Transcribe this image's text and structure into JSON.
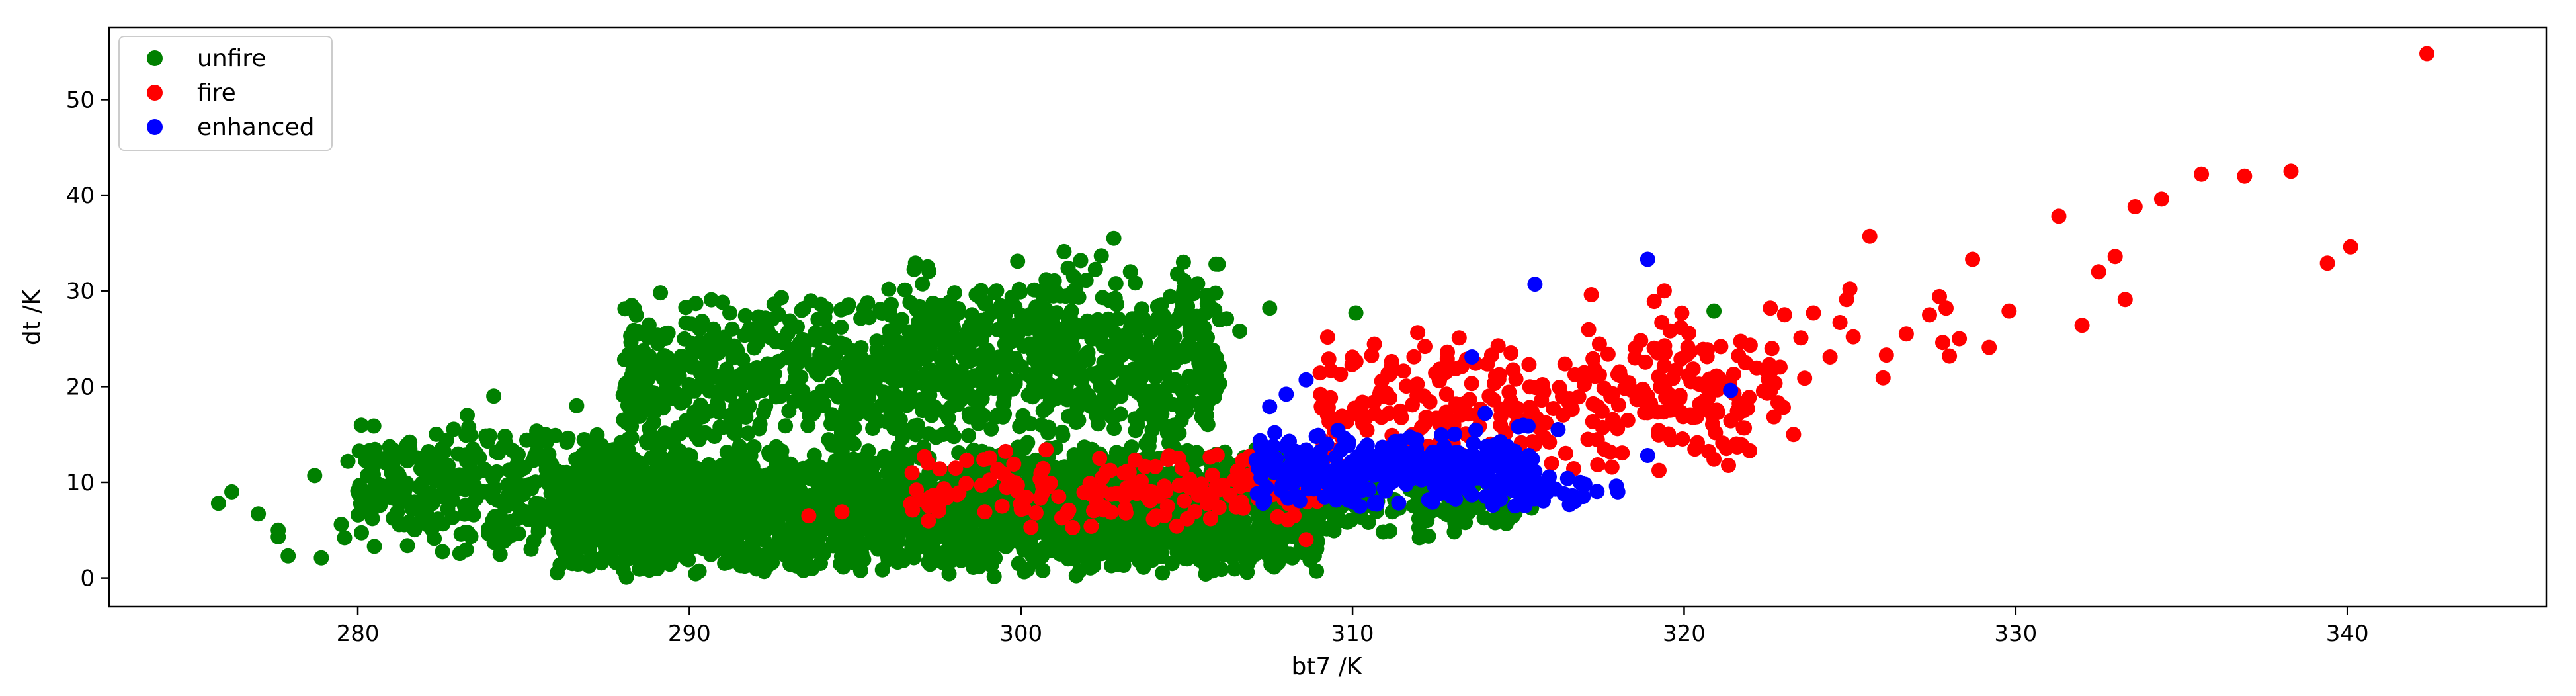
{
  "chart_data": {
    "type": "scatter",
    "title": "",
    "xlabel": "bt7 /K",
    "ylabel": "dt /K",
    "xlim": [
      272.5,
      346.0
    ],
    "ylim": [
      -3,
      57.5
    ],
    "x_ticks": [
      280,
      290,
      300,
      310,
      320,
      330,
      340
    ],
    "y_ticks": [
      0,
      10,
      20,
      30,
      40,
      50
    ],
    "grid": false,
    "legend_position": "top-left",
    "series": [
      {
        "name": "unfire",
        "color": "#008000",
        "clusters": [
          {
            "x_range": [
              286,
              309
            ],
            "y_range": [
              0,
              14
            ],
            "count": 2600
          },
          {
            "x_range": [
              288,
              306
            ],
            "y_range": [
              12,
              30
            ],
            "count": 900
          },
          {
            "x_range": [
              280,
              290
            ],
            "y_range": [
              2,
              17
            ],
            "count": 420
          },
          {
            "x_range": [
              296,
              306
            ],
            "y_range": [
              18,
              34
            ],
            "count": 260
          },
          {
            "x_range": [
              305,
              315
            ],
            "y_range": [
              4,
              12
            ],
            "count": 220
          }
        ],
        "points": [
          [
            275.8,
            7.8
          ],
          [
            276.2,
            9.0
          ],
          [
            277.0,
            6.7
          ],
          [
            277.6,
            5.0
          ],
          [
            277.6,
            4.3
          ],
          [
            277.9,
            2.3
          ],
          [
            278.7,
            10.7
          ],
          [
            278.9,
            2.1
          ],
          [
            279.5,
            5.6
          ],
          [
            279.6,
            4.2
          ],
          [
            279.7,
            12.2
          ],
          [
            280.0,
            9.1
          ],
          [
            280.5,
            3.3
          ],
          [
            281.0,
            9.3
          ],
          [
            283.3,
            17.0
          ],
          [
            284.1,
            19.0
          ],
          [
            286.6,
            18.0
          ],
          [
            288.1,
            0.1
          ],
          [
            292.8,
            24.6
          ],
          [
            294.2,
            26.0
          ],
          [
            296.5,
            30.1
          ],
          [
            298.0,
            29.8
          ],
          [
            299.9,
            33.1
          ],
          [
            301.3,
            34.1
          ],
          [
            302.8,
            35.5
          ],
          [
            303.3,
            32.0
          ],
          [
            304.9,
            33.0
          ],
          [
            306.2,
            27.1
          ],
          [
            306.6,
            25.8
          ],
          [
            307.5,
            28.2
          ],
          [
            310.1,
            27.7
          ],
          [
            310.5,
            10.4
          ],
          [
            311.2,
            6.9
          ],
          [
            312.0,
            6.2
          ],
          [
            313.4,
            5.8
          ],
          [
            314.9,
            6.8
          ],
          [
            315.4,
            7.3
          ],
          [
            320.9,
            27.9
          ]
        ]
      },
      {
        "name": "fire",
        "color": "#ff0000",
        "clusters": [
          {
            "x_range": [
              296.5,
              309
            ],
            "y_range": [
              5,
              14
            ],
            "count": 170
          },
          {
            "x_range": [
              309,
              322
            ],
            "y_range": [
              10,
              26
            ],
            "count": 280
          },
          {
            "x_range": [
              317,
              324
            ],
            "y_range": [
              13,
              30
            ],
            "count": 60
          }
        ],
        "points": [
          [
            293.6,
            6.5
          ],
          [
            294.6,
            6.9
          ],
          [
            300.3,
            5.3
          ],
          [
            302.5,
            7.1
          ],
          [
            308.6,
            4.0
          ],
          [
            317.2,
            29.6
          ],
          [
            319.1,
            28.9
          ],
          [
            319.4,
            30.0
          ],
          [
            319.9,
            26.2
          ],
          [
            320.9,
            12.4
          ],
          [
            321.6,
            13.7
          ],
          [
            322.6,
            28.2
          ],
          [
            323.3,
            15.0
          ],
          [
            323.9,
            27.7
          ],
          [
            324.4,
            23.1
          ],
          [
            324.7,
            26.7
          ],
          [
            324.9,
            29.1
          ],
          [
            325.0,
            30.2
          ],
          [
            325.1,
            25.2
          ],
          [
            325.6,
            35.7
          ],
          [
            326.0,
            20.9
          ],
          [
            326.1,
            23.3
          ],
          [
            326.7,
            25.5
          ],
          [
            327.4,
            27.5
          ],
          [
            327.7,
            29.4
          ],
          [
            327.9,
            28.2
          ],
          [
            327.8,
            24.6
          ],
          [
            328.0,
            23.2
          ],
          [
            328.3,
            25.0
          ],
          [
            328.7,
            33.3
          ],
          [
            329.2,
            24.1
          ],
          [
            329.8,
            27.9
          ],
          [
            331.3,
            37.8
          ],
          [
            332.0,
            26.4
          ],
          [
            332.5,
            32.0
          ],
          [
            333.0,
            33.6
          ],
          [
            333.3,
            29.1
          ],
          [
            333.6,
            38.8
          ],
          [
            334.4,
            39.6
          ],
          [
            335.6,
            42.2
          ],
          [
            336.9,
            42.0
          ],
          [
            338.3,
            42.5
          ],
          [
            339.4,
            32.9
          ],
          [
            340.1,
            34.6
          ],
          [
            342.4,
            54.8
          ]
        ]
      },
      {
        "name": "enhanced",
        "color": "#0000ff",
        "clusters": [
          {
            "x_range": [
              307,
              315.5
            ],
            "y_range": [
              7,
              16
            ],
            "count": 320
          },
          {
            "x_range": [
              314.5,
              318
            ],
            "y_range": [
              7,
              11
            ],
            "count": 25
          }
        ],
        "points": [
          [
            307.5,
            17.9
          ],
          [
            308.0,
            19.2
          ],
          [
            308.6,
            20.7
          ],
          [
            313.6,
            23.1
          ],
          [
            314.0,
            17.2
          ],
          [
            315.0,
            15.8
          ],
          [
            315.5,
            30.7
          ],
          [
            316.2,
            15.5
          ],
          [
            316.7,
            8.0
          ],
          [
            318.0,
            9.0
          ],
          [
            318.9,
            12.8
          ],
          [
            318.9,
            33.3
          ],
          [
            321.4,
            19.6
          ]
        ]
      }
    ]
  }
}
